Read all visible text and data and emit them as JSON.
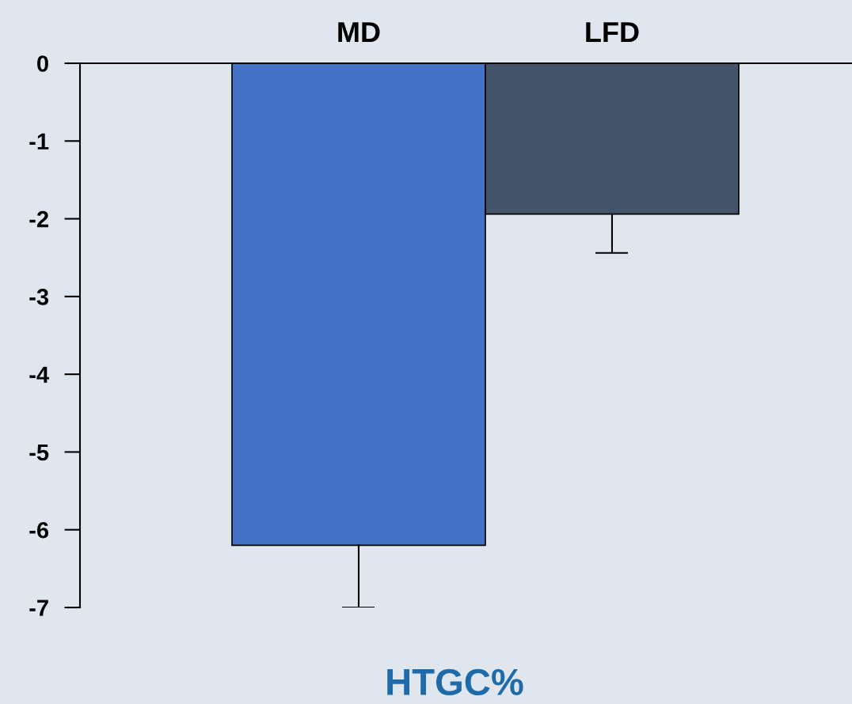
{
  "chart_data": {
    "type": "bar",
    "categories": [
      "MD",
      "LFD"
    ],
    "values": [
      -6.2,
      -1.94
    ],
    "errors": [
      [
        -7.0,
        -6.2
      ],
      [
        -2.44,
        -1.94
      ]
    ],
    "colors": [
      "#4472c4",
      "#44546a"
    ],
    "xlabel": "HTGC%",
    "ylim": [
      -7,
      0
    ],
    "yticks": [
      0,
      -1,
      -2,
      -3,
      -4,
      -5,
      -6,
      -7
    ],
    "grid": false,
    "legend": false
  }
}
